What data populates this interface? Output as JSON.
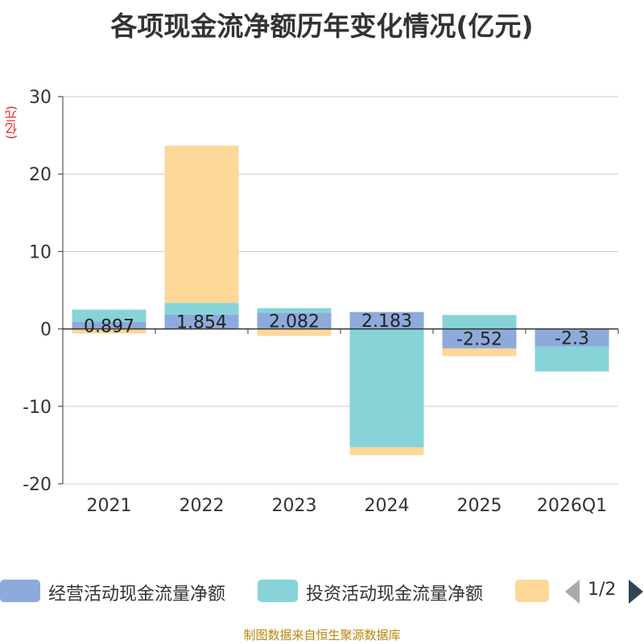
{
  "chart_data": {
    "type": "bar",
    "stacked": true,
    "title": "各项现金流净额历年变化情况(亿元)",
    "ylabel": "(亿元)",
    "xlabel": "",
    "categories": [
      "2021",
      "2022",
      "2023",
      "2024",
      "2025",
      "2026Q1"
    ],
    "ylim": [
      -20,
      30
    ],
    "yticks": [
      30,
      20,
      10,
      0,
      -10,
      -20
    ],
    "grid": true,
    "series": [
      {
        "name": "经营活动现金流量净额",
        "color": "#8eaadb",
        "values": [
          0.897,
          1.854,
          2.082,
          2.183,
          -2.52,
          -2.3
        ],
        "show_labels": true
      },
      {
        "name": "投资活动现金流量净额",
        "color": "#86d4d8",
        "values": [
          1.6,
          1.5,
          0.6,
          -15.3,
          1.8,
          -3.2
        ],
        "show_labels": false
      },
      {
        "name": "",
        "color": "#fdd898",
        "values": [
          -0.6,
          20.3,
          -0.9,
          -1.0,
          -1.0,
          0
        ],
        "show_labels": false
      }
    ],
    "legend_position": "bottom"
  },
  "legend": {
    "page": "1/2"
  },
  "source": "制图数据来自恒生聚源数据库"
}
